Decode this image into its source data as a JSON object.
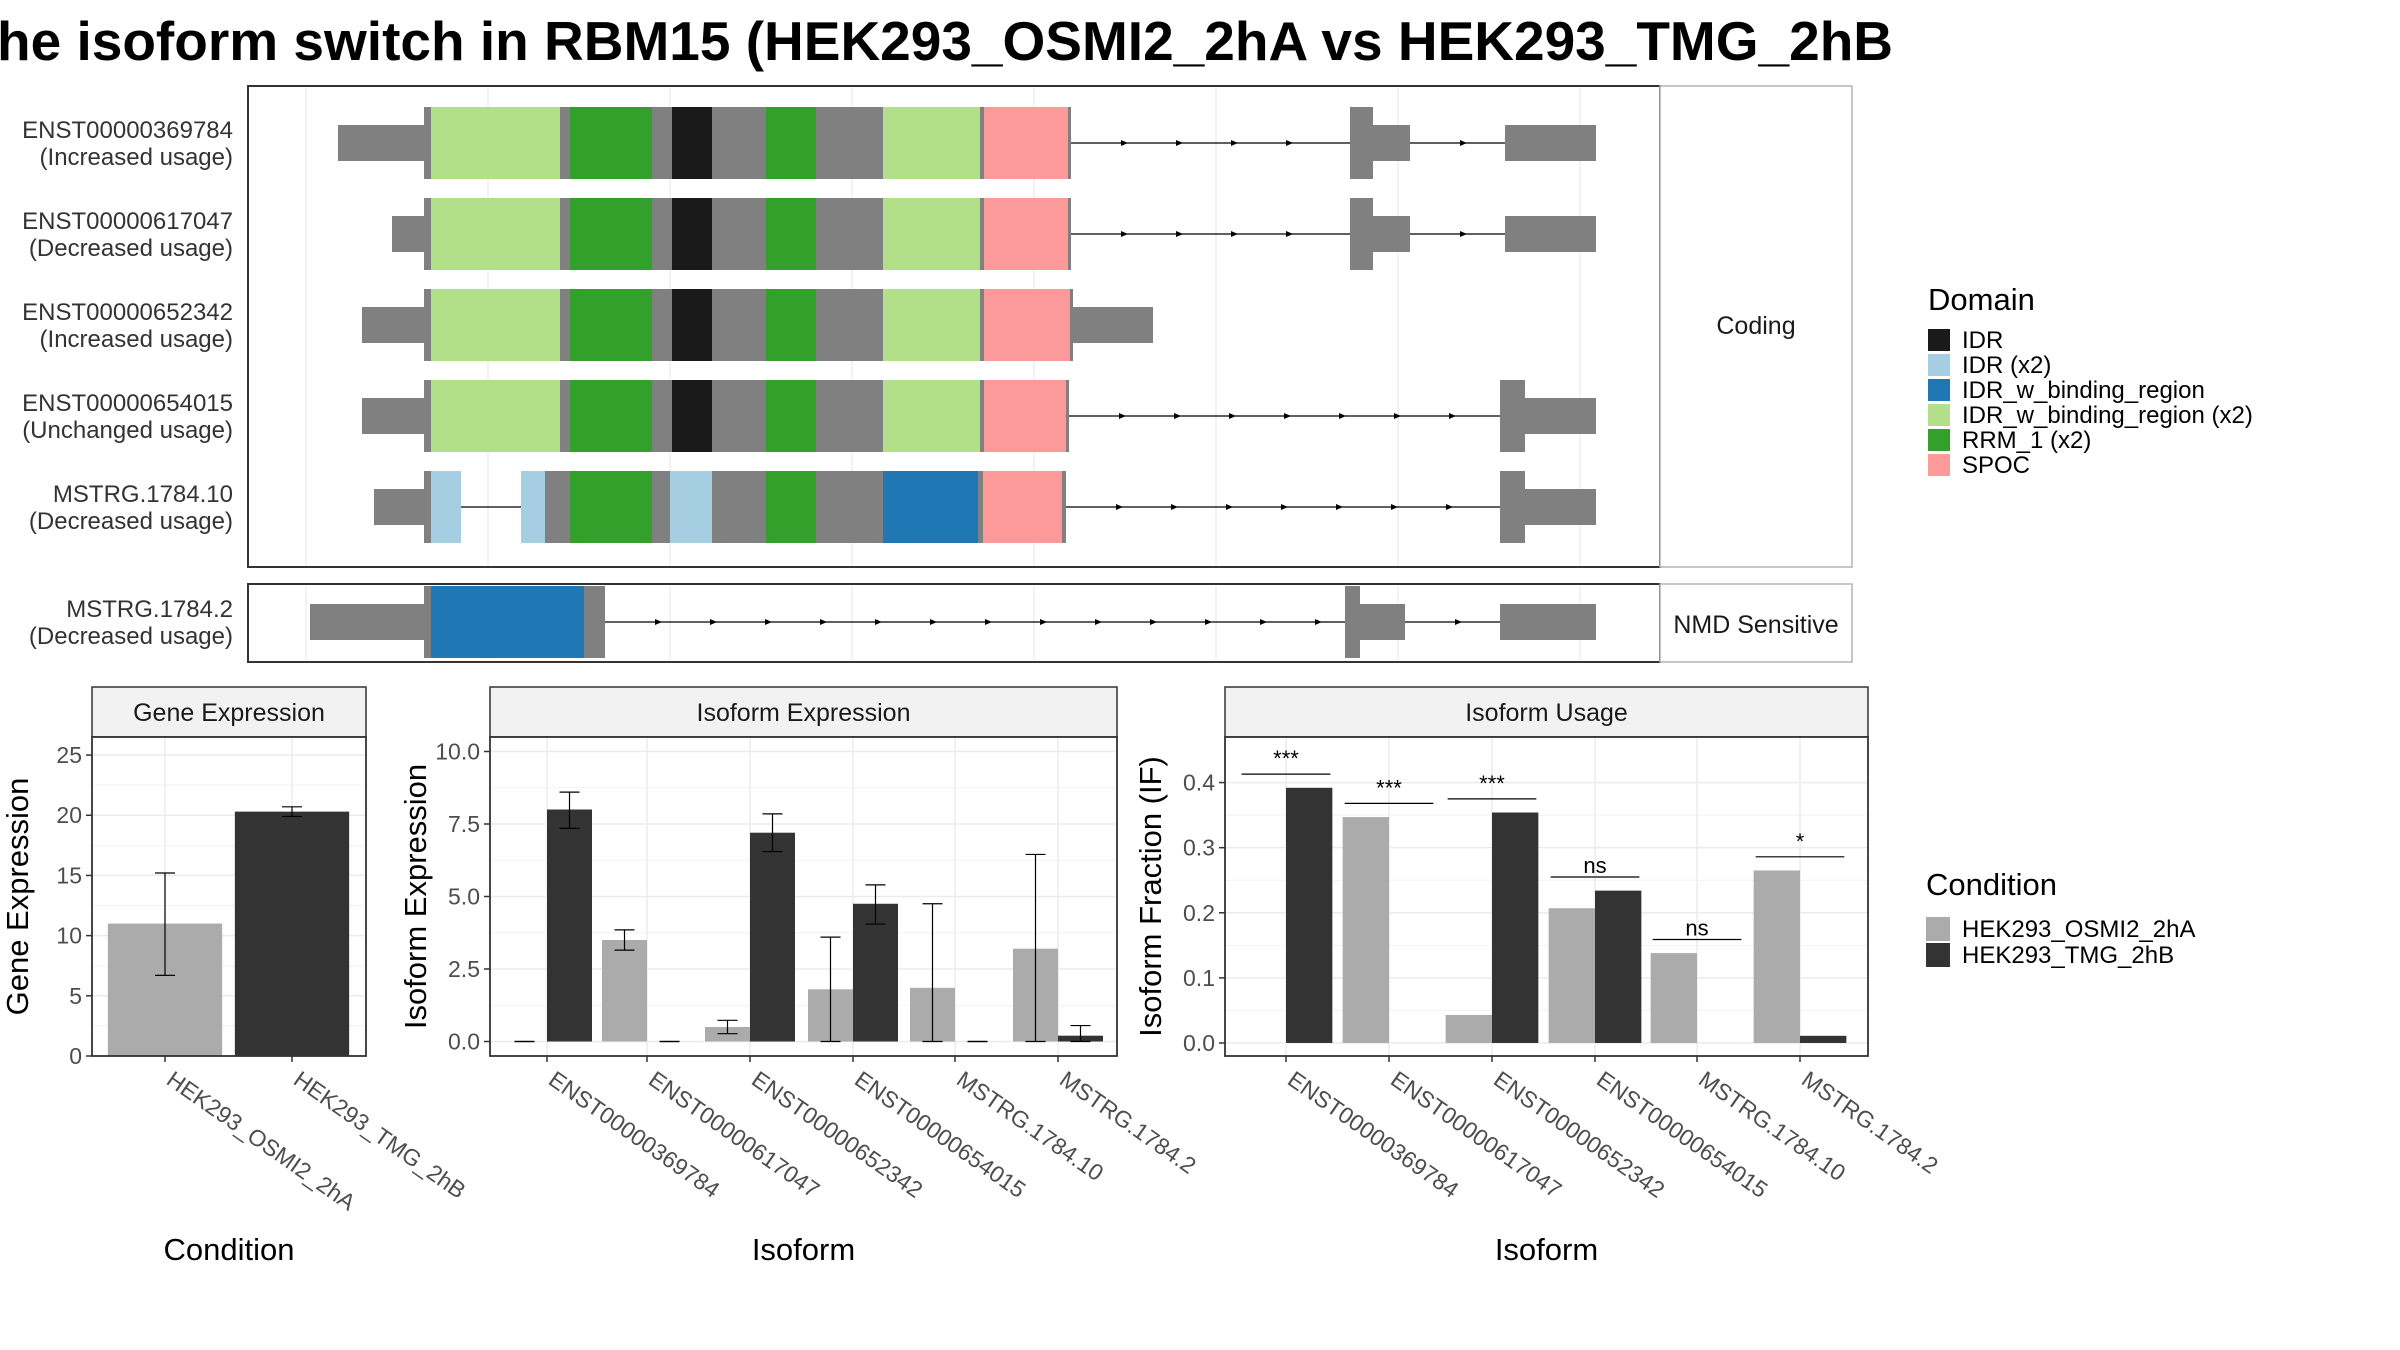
{
  "title": "he isoform switch in RBM15 (HEK293_OSMI2_2hA vs HEK293_TMG_2hB",
  "structure": {
    "facets": {
      "coding": "Coding",
      "nmd": "NMD Sensitive"
    },
    "transcripts": [
      {
        "id": "ENST00000369784",
        "usage": "(Increased usage)",
        "facet": "coding"
      },
      {
        "id": "ENST00000617047",
        "usage": "(Decreased usage)",
        "facet": "coding"
      },
      {
        "id": "ENST00000652342",
        "usage": "(Increased usage)",
        "facet": "coding"
      },
      {
        "id": "ENST00000654015",
        "usage": "(Unchanged usage)",
        "facet": "coding"
      },
      {
        "id": "MSTRG.1784.10",
        "usage": "(Decreased usage)",
        "facet": "coding"
      },
      {
        "id": "MSTRG.1784.2",
        "usage": "(Decreased usage)",
        "facet": "nmd"
      }
    ]
  },
  "domain_legend": {
    "title": "Domain",
    "items": [
      {
        "label": "IDR",
        "color": "#1a1a1a"
      },
      {
        "label": "IDR (x2)",
        "color": "#a6cee3"
      },
      {
        "label": "IDR_w_binding_region",
        "color": "#1f78b4"
      },
      {
        "label": "IDR_w_binding_region (x2)",
        "color": "#b2df8a"
      },
      {
        "label": "RRM_1 (x2)",
        "color": "#33a02c"
      },
      {
        "label": "SPOC",
        "color": "#fb9a99"
      }
    ]
  },
  "condition_legend": {
    "title": "Condition",
    "items": [
      {
        "label": "HEK293_OSMI2_2hA",
        "color": "#ababab"
      },
      {
        "label": "HEK293_TMG_2hB",
        "color": "#333333"
      }
    ]
  },
  "chart_data": [
    {
      "type": "bar",
      "title": "Gene Expression",
      "xlabel": "Condition",
      "ylabel": "Gene Expression",
      "categories": [
        "HEK293_OSMI2_2hA",
        "HEK293_TMG_2hB"
      ],
      "values": [
        11.0,
        20.3
      ],
      "error_low": [
        6.7,
        19.9
      ],
      "error_high": [
        15.2,
        20.7
      ],
      "ylim": [
        0,
        26.5
      ],
      "yticks": [
        "0",
        "5",
        "10",
        "15",
        "20",
        "25"
      ],
      "grid": true
    },
    {
      "type": "bar",
      "title": "Isoform Expression",
      "xlabel": "Isoform",
      "ylabel": "Isoform Expression",
      "categories": [
        "ENST00000369784",
        "ENST00000617047",
        "ENST00000652342",
        "ENST00000654015",
        "MSTRG.1784.10",
        "MSTRG.1784.2"
      ],
      "series": [
        {
          "name": "HEK293_OSMI2_2hA",
          "values": [
            0.0,
            3.5,
            0.5,
            1.8,
            1.85,
            3.2
          ],
          "error_low": [
            0.0,
            3.15,
            0.27,
            0.0,
            0.0,
            0.0
          ],
          "error_high": [
            0.0,
            3.85,
            0.73,
            3.6,
            4.75,
            6.45
          ]
        },
        {
          "name": "HEK293_TMG_2hB",
          "values": [
            8.0,
            0.0,
            7.2,
            4.75,
            0.0,
            0.2
          ],
          "error_low": [
            7.35,
            0.0,
            6.55,
            4.05,
            0.0,
            0.0
          ],
          "error_high": [
            8.6,
            0.0,
            7.85,
            5.4,
            0.0,
            0.55
          ]
        }
      ],
      "ylim": [
        -0.5,
        10.5
      ],
      "yticks": [
        "0.0",
        "2.5",
        "5.0",
        "7.5",
        "10.0"
      ],
      "grid": true
    },
    {
      "type": "bar",
      "title": "Isoform Usage",
      "xlabel": "Isoform",
      "ylabel": "Isoform Fraction (IF)",
      "categories": [
        "ENST00000369784",
        "ENST00000617047",
        "ENST00000652342",
        "ENST00000654015",
        "MSTRG.1784.10",
        "MSTRG.1784.2"
      ],
      "series": [
        {
          "name": "HEK293_OSMI2_2hA",
          "values": [
            0.0,
            0.347,
            0.043,
            0.207,
            0.138,
            0.265
          ]
        },
        {
          "name": "HEK293_TMG_2hB",
          "values": [
            0.392,
            0.0,
            0.354,
            0.234,
            0.0,
            0.011
          ]
        }
      ],
      "significance": [
        {
          "label": "***",
          "y": 0.413
        },
        {
          "label": "***",
          "y": 0.368
        },
        {
          "label": "***",
          "y": 0.375
        },
        {
          "label": "ns",
          "y": 0.255
        },
        {
          "label": "ns",
          "y": 0.159
        },
        {
          "label": "*",
          "y": 0.286
        }
      ],
      "ylim": [
        -0.02,
        0.47
      ],
      "yticks": [
        "0.0",
        "0.1",
        "0.2",
        "0.3",
        "0.4"
      ],
      "grid": true
    }
  ]
}
